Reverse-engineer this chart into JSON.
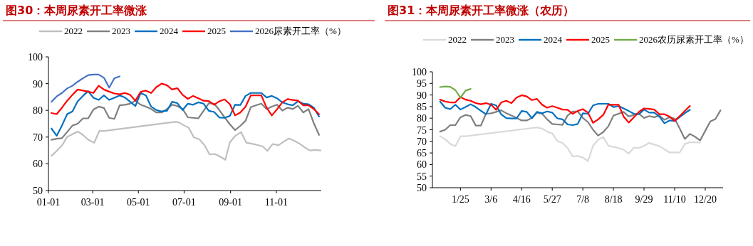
{
  "chart_data": [
    {
      "type": "line",
      "title": "图30：本周尿素开工率微涨",
      "legend": "top",
      "xlim": [
        "--01-01",
        "--12-31"
      ],
      "ylim": [
        50,
        100
      ],
      "xticks": [
        {
          "value": "--01-01",
          "label": "01-01"
        },
        {
          "value": "--03-01",
          "label": "03-01"
        },
        {
          "value": "--05-01",
          "label": "05-01"
        },
        {
          "value": "--07-01",
          "label": "07-01"
        },
        {
          "value": "--09-01",
          "label": "09-01"
        },
        {
          "value": "--11-01",
          "label": "11-01"
        }
      ],
      "yticks": [
        50,
        60,
        70,
        80,
        90,
        100
      ],
      "x": [
        "--01-05",
        "--01-12",
        "--01-19",
        "--01-26",
        "--02-02",
        "--02-09",
        "--02-16",
        "--02-23",
        "--03-02",
        "--03-09",
        "--03-16",
        "--03-23",
        "--03-30",
        "--04-06",
        "--04-13",
        "--04-20",
        "--04-27",
        "--05-04",
        "--05-11",
        "--05-18",
        "--05-25",
        "--06-01",
        "--06-08",
        "--06-15",
        "--06-22",
        "--06-29",
        "--07-06",
        "--07-13",
        "--07-20",
        "--07-27",
        "--08-03",
        "--08-10",
        "--08-17",
        "--08-24",
        "--08-31",
        "--09-07",
        "--09-14",
        "--09-21",
        "--09-28",
        "--10-05",
        "--10-12",
        "--10-19",
        "--10-26",
        "--11-02",
        "--11-09",
        "--11-16",
        "--11-23",
        "--11-30",
        "--12-07",
        "--12-14",
        "--12-21",
        "--12-28"
      ],
      "series": [
        {
          "name": "2022",
          "color": "#bfbfbf",
          "x": [
            "--01-05",
            "--01-12",
            "--01-19",
            "--01-26",
            "--02-02",
            "--02-09",
            "--02-16",
            "--02-23",
            "--03-03",
            "--03-10",
            "--03-17",
            "--06-19",
            "--06-24",
            "--06-30",
            "--07-07",
            "--07-14",
            "--07-21",
            "--07-28",
            "--08-04",
            "--08-11",
            "--08-18",
            "--08-25",
            "--08-31",
            "--09-07",
            "--09-15",
            "--09-22",
            "--09-29",
            "--10-06",
            "--10-14",
            "--10-20",
            "--10-27",
            "--11-04",
            "--11-11",
            "--11-18",
            "--11-25",
            "--12-01",
            "--12-09",
            "--12-16",
            "--12-23",
            "--12-30"
          ],
          "values": [
            63,
            64.8,
            66.8,
            70.1,
            71.1,
            72.1,
            70.8,
            69,
            67.9,
            72.3,
            72.3,
            75.7,
            75.5,
            74.5,
            73.5,
            69.9,
            69.2,
            67.1,
            63.5,
            63.7,
            62.7,
            61.5,
            68,
            70.4,
            71.9,
            67.9,
            67.5,
            67.1,
            66.5,
            64.8,
            67.4,
            67,
            68.3,
            69.5,
            68.6,
            67.7,
            66.1,
            65,
            65.2,
            65
          ]
        },
        {
          "name": "2023",
          "color": "#7f7f7f",
          "values": [
            69,
            69.4,
            69.6,
            71.9,
            74.3,
            75,
            77,
            77,
            80.3,
            81.4,
            80.9,
            77.2,
            76.8,
            81.9,
            82.1,
            82.5,
            83.6,
            82.1,
            81.4,
            80.5,
            79.2,
            79.2,
            80.5,
            82.1,
            81.6,
            80.5,
            77.4,
            77.2,
            77,
            79.8,
            82.7,
            82.5,
            80.1,
            77.4,
            74.8,
            72.6,
            74.2,
            76.1,
            81.2,
            81.9,
            82.5,
            80.5,
            81.4,
            82.1,
            79.9,
            81,
            80.5,
            81.7,
            79.2,
            80.5,
            75.2,
            70.8
          ]
        },
        {
          "name": "2024",
          "color": "#0070c0",
          "values": [
            73.2,
            70.5,
            74.3,
            78.6,
            79.6,
            83.4,
            85.4,
            87.2,
            84.7,
            83.9,
            85.6,
            83.9,
            84.7,
            85.6,
            84.8,
            83.2,
            81.6,
            86.5,
            85.6,
            81.4,
            80.1,
            79.6,
            79.8,
            83.2,
            82.7,
            80.1,
            82.5,
            82.1,
            83,
            82.5,
            79.8,
            79.4,
            77.3,
            77.2,
            77.9,
            82.1,
            82,
            85.4,
            86.5,
            86.5,
            86.5,
            84.8,
            85.4,
            84.5,
            83,
            82.3,
            81.9,
            83.4,
            82.5,
            82.3,
            81,
            77.7
          ]
        },
        {
          "name": "2025",
          "color": "#ff0000",
          "values": [
            79,
            78.6,
            81,
            83.6,
            85.8,
            87.8,
            87.4,
            87,
            86.5,
            89.2,
            87.8,
            87,
            86.3,
            86,
            86.5,
            85.8,
            83.6,
            86.9,
            87.4,
            86.5,
            88.7,
            90,
            89.4,
            87.8,
            88.3,
            85.8,
            84.3,
            85.4,
            84.5,
            83.6,
            83.5,
            82.1,
            83.4,
            84.1,
            82.3,
            78.1,
            79.2,
            81.4,
            85.6,
            85.6,
            85.6,
            81,
            78.1,
            80.4,
            83,
            84.2,
            83.9,
            83.6,
            81.9,
            81.9,
            80.5,
            78.6
          ]
        },
        {
          "name": "2026尿素开工率（%）",
          "color": "#4472c4",
          "x": [
            "--01-05",
            "--01-12",
            "--01-19",
            "--01-26",
            "--02-02",
            "--02-09",
            "--02-16",
            "--02-23",
            "--03-02",
            "--03-09",
            "--03-16",
            "--03-23",
            "--03-30",
            "--04-06"
          ],
          "values": [
            83.2,
            85.2,
            86.5,
            88.2,
            89.2,
            90.7,
            92,
            93.2,
            93.4,
            93.4,
            92.2,
            88.5,
            92,
            92.7
          ]
        }
      ]
    },
    {
      "type": "line",
      "title": "图31：本周尿素开工率微涨（农历）",
      "legend": "top",
      "ylim": [
        50,
        100
      ],
      "yticks": [
        50,
        55,
        60,
        65,
        70,
        75,
        80,
        85,
        90,
        95,
        100
      ],
      "categories": [
        null,
        null,
        null,
        null,
        null,
        "1/25",
        null,
        null,
        null,
        null,
        null,
        "3/6",
        null,
        null,
        null,
        null,
        null,
        "4/16",
        null,
        null,
        null,
        null,
        null,
        "5/27",
        null,
        null,
        null,
        null,
        null,
        "7/8",
        null,
        null,
        null,
        null,
        null,
        "8/18",
        null,
        null,
        null,
        null,
        null,
        "9/29",
        null,
        null,
        null,
        null,
        null,
        "11/10",
        null,
        null,
        null,
        null,
        null,
        "12/20",
        null,
        null,
        null
      ],
      "series": [
        {
          "name": "2022",
          "color": "#d9d9d9",
          "values": [
            null,
            72.2,
            70.9,
            68.9,
            67.9,
            72.2,
            72.2,
            null,
            null,
            null,
            null,
            null,
            null,
            null,
            null,
            null,
            null,
            null,
            null,
            null,
            76,
            75.5,
            74.2,
            73.4,
            70.1,
            69.3,
            67.1,
            63.5,
            63.7,
            63,
            61.5,
            68.1,
            70.7,
            71.9,
            68.1,
            67.6,
            67.1,
            66.4,
            64.7,
            67.3,
            67.1,
            68.1,
            69.3,
            68.6,
            67.9,
            66.6,
            65.2,
            65.2,
            65.2,
            68.9,
            69.6,
            69.6,
            69.4,
            null,
            null,
            null,
            null
          ]
        },
        {
          "name": "2023",
          "color": "#7f7f7f",
          "values": [
            null,
            74.2,
            75,
            77,
            77,
            80.4,
            81.4,
            80.9,
            76.8,
            76.8,
            81.9,
            82.1,
            82.7,
            83.4,
            82.1,
            81.1,
            80.1,
            79,
            79,
            80.1,
            82.4,
            81.9,
            79.5,
            77.5,
            77.3,
            77.1,
            81.1,
            82.9,
            82.9,
            80.1,
            78.3,
            75,
            72.5,
            74,
            76.5,
            81.1,
            81.9,
            82.7,
            80.7,
            81.4,
            81.9,
            80.1,
            80.9,
            80.4,
            81.1,
            79.3,
            80.4,
            79.8,
            75.5,
            71,
            73.2,
            72,
            70.4,
            74.5,
            78.6,
            79.6,
            83.4
          ]
        },
        {
          "name": "2024",
          "color": "#0070c0",
          "values": [
            null,
            87.2,
            84.5,
            83.9,
            85.8,
            83.7,
            84.8,
            86,
            84.8,
            83.2,
            81.7,
            86.2,
            85.5,
            81.6,
            80,
            79.9,
            79.9,
            83.1,
            82.7,
            80,
            82.7,
            82.1,
            82.9,
            82.4,
            79.9,
            79.5,
            77.3,
            77,
            77.5,
            82.1,
            81.9,
            85.5,
            86.2,
            86.2,
            86.2,
            84.8,
            85.2,
            84.2,
            83.1,
            81.9,
            81.7,
            83.7,
            82.4,
            82.4,
            80.7,
            77.8,
            79,
            78.8,
            80.5,
            82.2,
            83.6,
            null,
            null,
            null,
            null,
            null,
            null
          ]
        },
        {
          "name": "2025",
          "color": "#ff0000",
          "values": [
            null,
            88,
            87.2,
            86.8,
            86.8,
            89.1,
            88,
            87.5,
            86.5,
            86,
            86.5,
            85.8,
            83.6,
            86.8,
            87.5,
            86.5,
            88.9,
            89.9,
            89.4,
            87.8,
            88.3,
            85.8,
            84.5,
            85.2,
            84.5,
            83.7,
            83.6,
            81.9,
            83.1,
            83.9,
            82.4,
            78,
            79.5,
            81.4,
            85.8,
            85.8,
            85.8,
            80.7,
            78.1,
            80.4,
            82.7,
            84.2,
            84,
            83.7,
            81.7,
            81.7,
            80.7,
            78.8,
            80.9,
            83.1,
            85.3,
            null,
            null,
            null,
            null,
            null,
            null
          ]
        },
        {
          "name": "2026农历尿素开工率（%）",
          "color": "#70ad47",
          "values": [
            null,
            93.4,
            93.7,
            93.5,
            92.1,
            88.8,
            91.9,
            92.6,
            null,
            null,
            null,
            null,
            null,
            null,
            null,
            null,
            null,
            null,
            null,
            null,
            null,
            null,
            null,
            null,
            null,
            null,
            null,
            null,
            null,
            null,
            null,
            null,
            null,
            null,
            null,
            null,
            null,
            null,
            null,
            null,
            null,
            null,
            null,
            null,
            null,
            null,
            null,
            null,
            null,
            null,
            null,
            null,
            null,
            null,
            null,
            null,
            null
          ]
        }
      ]
    }
  ]
}
